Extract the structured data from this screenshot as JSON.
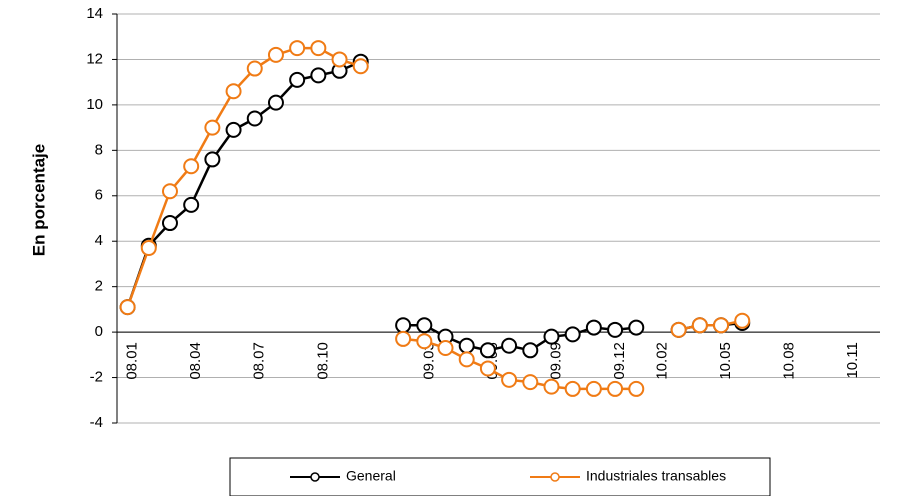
{
  "chart_data": {
    "type": "line",
    "y_label": "En porcentaje",
    "categories": [
      "08.01",
      null,
      null,
      "08.04",
      null,
      null,
      "08.07",
      null,
      null,
      "08.10",
      null,
      null,
      null,
      null,
      "09.03",
      null,
      null,
      "09.06",
      null,
      null,
      "09.09",
      null,
      null,
      "09.12",
      null,
      "10.02",
      null,
      null,
      "10.05",
      null,
      null,
      "10.08",
      null,
      null,
      "10.11",
      null
    ],
    "series": [
      {
        "name": "General",
        "color": "#000000",
        "values": [
          1.1,
          3.8,
          4.8,
          5.6,
          7.6,
          8.9,
          9.4,
          10.1,
          11.1,
          11.3,
          11.5,
          11.9,
          null,
          0.3,
          0.3,
          -0.2,
          -0.6,
          -0.8,
          -0.6,
          -0.8,
          -0.2,
          -0.1,
          0.2,
          0.1,
          0.2,
          null,
          0.1,
          0.3,
          0.3,
          0.4,
          null,
          null,
          null,
          null,
          null,
          null
        ]
      },
      {
        "name": "Industriales transables",
        "color": "#f07b15",
        "values": [
          1.1,
          3.7,
          6.2,
          7.3,
          9.0,
          10.6,
          11.6,
          12.2,
          12.5,
          12.5,
          12.0,
          11.7,
          null,
          -0.3,
          -0.4,
          -0.7,
          -1.2,
          -1.6,
          -2.1,
          -2.2,
          -2.4,
          -2.5,
          -2.5,
          -2.5,
          -2.5,
          null,
          0.1,
          0.3,
          0.3,
          0.5,
          null,
          null,
          null,
          null,
          null,
          null
        ]
      }
    ],
    "ylim": [
      -4,
      14
    ],
    "yticks": [
      -4,
      -2,
      0,
      2,
      4,
      6,
      8,
      10,
      12,
      14
    ],
    "grid": true
  }
}
